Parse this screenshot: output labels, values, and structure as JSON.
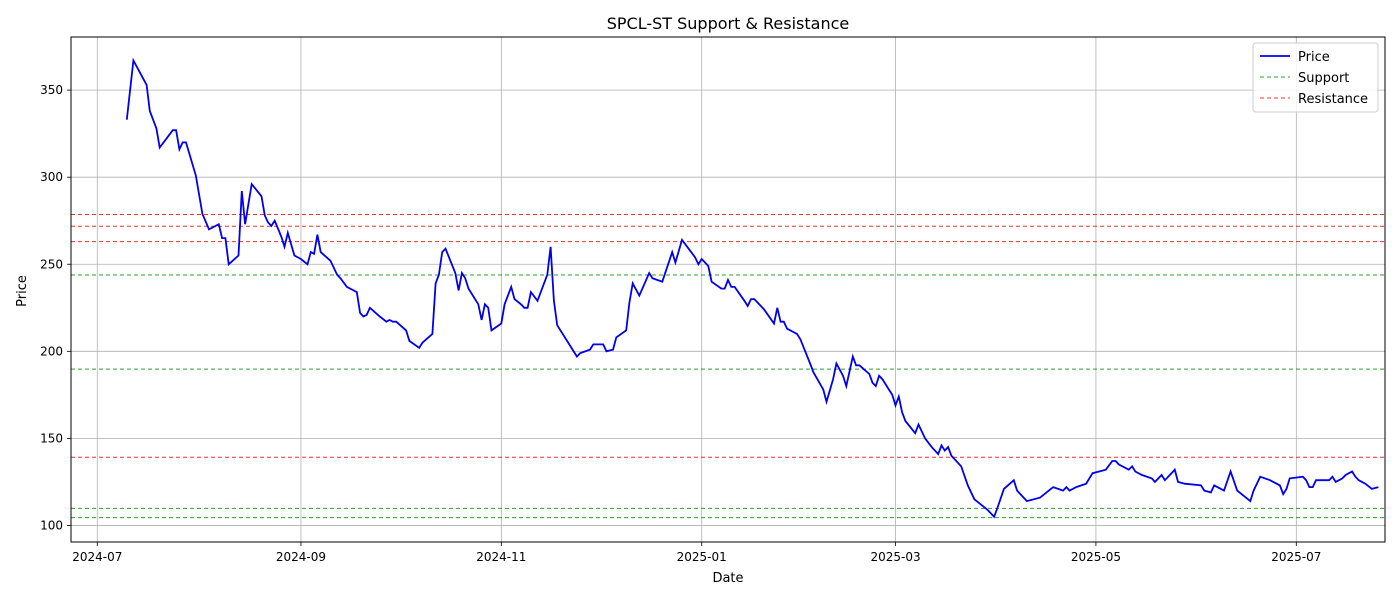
{
  "chart_data": {
    "type": "line",
    "title": "SPCL-ST Support & Resistance",
    "xlabel": "Date",
    "ylabel": "Price",
    "xlim": [
      "2024-06-23",
      "2025-07-28"
    ],
    "ylim": [
      90.5,
      380.5
    ],
    "x_ticks": [
      "2024-07-01",
      "2024-09-01",
      "2024-11-01",
      "2025-01-01",
      "2025-03-01",
      "2025-05-01",
      "2025-07-01"
    ],
    "x_tick_labels": [
      "2024-07",
      "2024-09",
      "2024-11",
      "2025-01",
      "2025-03",
      "2025-05",
      "2025-07"
    ],
    "y_ticks": [
      100,
      150,
      200,
      250,
      300,
      350
    ],
    "grid": true,
    "legend": {
      "position": "top-right",
      "entries": [
        "Price",
        "Support",
        "Resistance"
      ]
    },
    "colors": {
      "price": "#0000ee",
      "support": "#2ca02c",
      "resistance": "#e8352f"
    },
    "support_levels": [
      243.8,
      189.8,
      109.8,
      104.5
    ],
    "resistance_levels": [
      278.6,
      271.8,
      263.0,
      139.2
    ],
    "series": [
      {
        "name": "Price",
        "points": [
          [
            "2024-07-10",
            333
          ],
          [
            "2024-07-12",
            367
          ],
          [
            "2024-07-16",
            353
          ],
          [
            "2024-07-17",
            338
          ],
          [
            "2024-07-19",
            328
          ],
          [
            "2024-07-20",
            317
          ],
          [
            "2024-07-24",
            327
          ],
          [
            "2024-07-25",
            327
          ],
          [
            "2024-07-26",
            316
          ],
          [
            "2024-07-27",
            320
          ],
          [
            "2024-07-28",
            320
          ],
          [
            "2024-07-31",
            301
          ],
          [
            "2024-08-02",
            279
          ],
          [
            "2024-08-04",
            270
          ],
          [
            "2024-08-07",
            273
          ],
          [
            "2024-08-08",
            265
          ],
          [
            "2024-08-09",
            265
          ],
          [
            "2024-08-10",
            250
          ],
          [
            "2024-08-13",
            255
          ],
          [
            "2024-08-14",
            292
          ],
          [
            "2024-08-15",
            273
          ],
          [
            "2024-08-17",
            296
          ],
          [
            "2024-08-20",
            289
          ],
          [
            "2024-08-21",
            278
          ],
          [
            "2024-08-22",
            274
          ],
          [
            "2024-08-23",
            272
          ],
          [
            "2024-08-24",
            275
          ],
          [
            "2024-08-26",
            266
          ],
          [
            "2024-08-27",
            260
          ],
          [
            "2024-08-28",
            268
          ],
          [
            "2024-08-30",
            255
          ],
          [
            "2024-09-01",
            253
          ],
          [
            "2024-09-03",
            250
          ],
          [
            "2024-09-04",
            257
          ],
          [
            "2024-09-05",
            256
          ],
          [
            "2024-09-06",
            267
          ],
          [
            "2024-09-07",
            257
          ],
          [
            "2024-09-10",
            252
          ],
          [
            "2024-09-12",
            244
          ],
          [
            "2024-09-13",
            242
          ],
          [
            "2024-09-15",
            237
          ],
          [
            "2024-09-18",
            234
          ],
          [
            "2024-09-19",
            222
          ],
          [
            "2024-09-20",
            220
          ],
          [
            "2024-09-21",
            221
          ],
          [
            "2024-09-22",
            225
          ],
          [
            "2024-09-25",
            220
          ],
          [
            "2024-09-27",
            217
          ],
          [
            "2024-09-28",
            218
          ],
          [
            "2024-09-29",
            217
          ],
          [
            "2024-09-30",
            217
          ],
          [
            "2024-10-03",
            212
          ],
          [
            "2024-10-04",
            206
          ],
          [
            "2024-10-07",
            202
          ],
          [
            "2024-10-08",
            205
          ],
          [
            "2024-10-11",
            210
          ],
          [
            "2024-10-12",
            239
          ],
          [
            "2024-10-13",
            244
          ],
          [
            "2024-10-14",
            257
          ],
          [
            "2024-10-15",
            259
          ],
          [
            "2024-10-18",
            245
          ],
          [
            "2024-10-19",
            235
          ],
          [
            "2024-10-20",
            245
          ],
          [
            "2024-10-21",
            242
          ],
          [
            "2024-10-22",
            236
          ],
          [
            "2024-10-25",
            227
          ],
          [
            "2024-10-26",
            218
          ],
          [
            "2024-10-27",
            227
          ],
          [
            "2024-10-28",
            225
          ],
          [
            "2024-10-29",
            212
          ],
          [
            "2024-11-01",
            216
          ],
          [
            "2024-11-02",
            227
          ],
          [
            "2024-11-04",
            237
          ],
          [
            "2024-11-05",
            230
          ],
          [
            "2024-11-07",
            227
          ],
          [
            "2024-11-08",
            225
          ],
          [
            "2024-11-09",
            225
          ],
          [
            "2024-11-10",
            234
          ],
          [
            "2024-11-12",
            229
          ],
          [
            "2024-11-15",
            244
          ],
          [
            "2024-11-16",
            260
          ],
          [
            "2024-11-17",
            229
          ],
          [
            "2024-11-18",
            215
          ],
          [
            "2024-11-24",
            197
          ],
          [
            "2024-11-25",
            199
          ],
          [
            "2024-11-28",
            201
          ],
          [
            "2024-11-29",
            204
          ],
          [
            "2024-12-02",
            204
          ],
          [
            "2024-12-03",
            200
          ],
          [
            "2024-12-05",
            201
          ],
          [
            "2024-12-06",
            208
          ],
          [
            "2024-12-09",
            212
          ],
          [
            "2024-12-10",
            228
          ],
          [
            "2024-12-11",
            239
          ],
          [
            "2024-12-13",
            232
          ],
          [
            "2024-12-16",
            245
          ],
          [
            "2024-12-17",
            242
          ],
          [
            "2024-12-20",
            240
          ],
          [
            "2024-12-23",
            257
          ],
          [
            "2024-12-24",
            251
          ],
          [
            "2024-12-26",
            264
          ],
          [
            "2024-12-30",
            254
          ],
          [
            "2024-12-31",
            250
          ],
          [
            "2025-01-01",
            253
          ],
          [
            "2025-01-03",
            249
          ],
          [
            "2025-01-04",
            240
          ],
          [
            "2025-01-07",
            236
          ],
          [
            "2025-01-08",
            236
          ],
          [
            "2025-01-09",
            241
          ],
          [
            "2025-01-10",
            237
          ],
          [
            "2025-01-11",
            237
          ],
          [
            "2025-01-14",
            229
          ],
          [
            "2025-01-15",
            226
          ],
          [
            "2025-01-16",
            230
          ],
          [
            "2025-01-17",
            230
          ],
          [
            "2025-01-19",
            226
          ],
          [
            "2025-01-20",
            224
          ],
          [
            "2025-01-23",
            216
          ],
          [
            "2025-01-24",
            225
          ],
          [
            "2025-01-25",
            217
          ],
          [
            "2025-01-26",
            217
          ],
          [
            "2025-01-27",
            213
          ],
          [
            "2025-01-30",
            210
          ],
          [
            "2025-01-31",
            207
          ],
          [
            "2025-02-03",
            193
          ],
          [
            "2025-02-04",
            188
          ],
          [
            "2025-02-07",
            178
          ],
          [
            "2025-02-08",
            171
          ],
          [
            "2025-02-10",
            184
          ],
          [
            "2025-02-11",
            193
          ],
          [
            "2025-02-13",
            186
          ],
          [
            "2025-02-14",
            180
          ],
          [
            "2025-02-16",
            197
          ],
          [
            "2025-02-17",
            192
          ],
          [
            "2025-02-18",
            192
          ],
          [
            "2025-02-21",
            187
          ],
          [
            "2025-02-22",
            182
          ],
          [
            "2025-02-23",
            180
          ],
          [
            "2025-02-24",
            186
          ],
          [
            "2025-02-25",
            184
          ],
          [
            "2025-02-28",
            175
          ],
          [
            "2025-03-01",
            169
          ],
          [
            "2025-03-02",
            174
          ],
          [
            "2025-03-03",
            165
          ],
          [
            "2025-03-04",
            160
          ],
          [
            "2025-03-07",
            153
          ],
          [
            "2025-03-08",
            158
          ],
          [
            "2025-03-10",
            150
          ],
          [
            "2025-03-12",
            145
          ],
          [
            "2025-03-14",
            141
          ],
          [
            "2025-03-15",
            146
          ],
          [
            "2025-03-16",
            143
          ],
          [
            "2025-03-17",
            145
          ],
          [
            "2025-03-18",
            140
          ],
          [
            "2025-03-21",
            134
          ],
          [
            "2025-03-23",
            123
          ],
          [
            "2025-03-25",
            115
          ],
          [
            "2025-03-29",
            109
          ],
          [
            "2025-03-31",
            105
          ],
          [
            "2025-04-01",
            110
          ],
          [
            "2025-04-03",
            121
          ],
          [
            "2025-04-06",
            126
          ],
          [
            "2025-04-07",
            120
          ],
          [
            "2025-04-10",
            114
          ],
          [
            "2025-04-14",
            116
          ],
          [
            "2025-04-18",
            122
          ],
          [
            "2025-04-21",
            120
          ],
          [
            "2025-04-22",
            122
          ],
          [
            "2025-04-23",
            120
          ],
          [
            "2025-04-25",
            122
          ],
          [
            "2025-04-28",
            124
          ],
          [
            "2025-04-30",
            130
          ],
          [
            "2025-05-04",
            132
          ],
          [
            "2025-05-06",
            137
          ],
          [
            "2025-05-07",
            137
          ],
          [
            "2025-05-08",
            135
          ],
          [
            "2025-05-11",
            132
          ],
          [
            "2025-05-12",
            134
          ],
          [
            "2025-05-13",
            131
          ],
          [
            "2025-05-15",
            129
          ],
          [
            "2025-05-18",
            127
          ],
          [
            "2025-05-19",
            125
          ],
          [
            "2025-05-21",
            129
          ],
          [
            "2025-05-22",
            126
          ],
          [
            "2025-05-25",
            132
          ],
          [
            "2025-05-26",
            125
          ],
          [
            "2025-05-28",
            124
          ],
          [
            "2025-06-02",
            123
          ],
          [
            "2025-06-03",
            120
          ],
          [
            "2025-06-05",
            119
          ],
          [
            "2025-06-06",
            123
          ],
          [
            "2025-06-09",
            120
          ],
          [
            "2025-06-11",
            131
          ],
          [
            "2025-06-13",
            120
          ],
          [
            "2025-06-17",
            114
          ],
          [
            "2025-06-18",
            120
          ],
          [
            "2025-06-20",
            128
          ],
          [
            "2025-06-23",
            126
          ],
          [
            "2025-06-26",
            123
          ],
          [
            "2025-06-27",
            118
          ],
          [
            "2025-06-28",
            121
          ],
          [
            "2025-06-29",
            127
          ],
          [
            "2025-07-03",
            128
          ],
          [
            "2025-07-04",
            126
          ],
          [
            "2025-07-05",
            122
          ],
          [
            "2025-07-06",
            122
          ],
          [
            "2025-07-07",
            126
          ],
          [
            "2025-07-08",
            126
          ],
          [
            "2025-07-11",
            126
          ],
          [
            "2025-07-12",
            128
          ],
          [
            "2025-07-13",
            125
          ],
          [
            "2025-07-15",
            127
          ],
          [
            "2025-07-16",
            129
          ],
          [
            "2025-07-18",
            131
          ],
          [
            "2025-07-19",
            128
          ],
          [
            "2025-07-20",
            126
          ],
          [
            "2025-07-21",
            125
          ],
          [
            "2025-07-22",
            124
          ],
          [
            "2025-07-24",
            121
          ],
          [
            "2025-07-26",
            122
          ]
        ]
      }
    ]
  }
}
